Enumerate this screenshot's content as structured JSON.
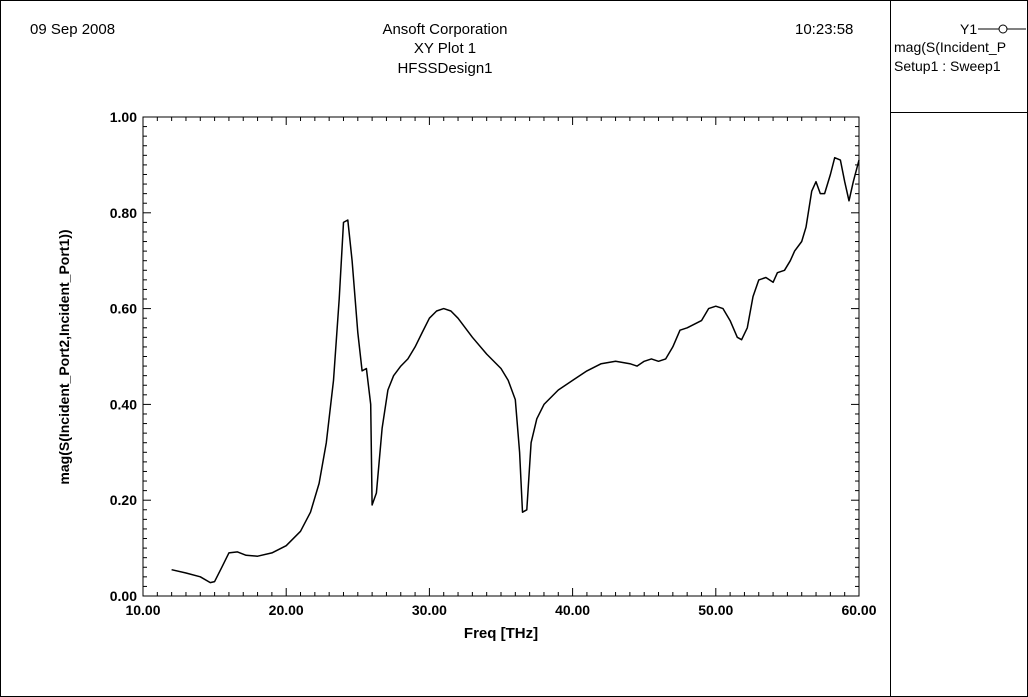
{
  "header": {
    "date": "09 Sep 2008",
    "time": "10:23:58",
    "company": "Ansoft Corporation",
    "plot_name": "XY Plot 1",
    "design": "HFSSDesign1"
  },
  "legend": {
    "label": "Y1",
    "line1": "mag(S(Incident_P",
    "line2": "Setup1 : Sweep1"
  },
  "chart_data": {
    "type": "line",
    "xlabel": "Freq [THz]",
    "ylabel": "mag(S(Incident_Port2,Incident_Port1))",
    "xlim": [
      10,
      60
    ],
    "ylim": [
      0,
      1
    ],
    "xticks": [
      "10.00",
      "20.00",
      "30.00",
      "40.00",
      "50.00",
      "60.00"
    ],
    "yticks": [
      "0.00",
      "0.20",
      "0.40",
      "0.60",
      "0.80",
      "1.00"
    ],
    "grid": false,
    "series": [
      {
        "name": "Y1",
        "color": "#000000",
        "x": [
          12.0,
          13.0,
          14.0,
          14.7,
          15.0,
          15.5,
          16.0,
          16.6,
          17.2,
          18.0,
          19.0,
          20.0,
          21.0,
          21.7,
          22.3,
          22.8,
          23.3,
          23.7,
          24.0,
          24.3,
          24.6,
          25.0,
          25.3,
          25.6,
          25.9,
          26.0,
          26.3,
          26.7,
          27.1,
          27.5,
          28.0,
          28.5,
          29.0,
          29.5,
          30.0,
          30.5,
          31.0,
          31.5,
          32.0,
          33.0,
          34.0,
          35.0,
          35.5,
          36.0,
          36.3,
          36.5,
          36.8,
          37.1,
          37.5,
          38.0,
          39.0,
          40.0,
          41.0,
          42.0,
          43.0,
          44.0,
          44.5,
          45.0,
          45.5,
          46.0,
          46.5,
          47.0,
          47.5,
          48.0,
          49.0,
          49.5,
          50.0,
          50.5,
          51.0,
          51.5,
          51.8,
          52.2,
          52.6,
          53.0,
          53.5,
          54.0,
          54.3,
          54.8,
          55.2,
          55.5,
          56.0,
          56.3,
          56.7,
          57.0,
          57.3,
          57.6,
          58.0,
          58.3,
          58.7,
          59.0,
          59.3,
          59.6,
          60.0
        ],
        "y": [
          0.055,
          0.048,
          0.04,
          0.028,
          0.03,
          0.06,
          0.09,
          0.092,
          0.085,
          0.083,
          0.09,
          0.105,
          0.135,
          0.175,
          0.235,
          0.32,
          0.45,
          0.62,
          0.78,
          0.785,
          0.7,
          0.55,
          0.47,
          0.475,
          0.4,
          0.19,
          0.215,
          0.35,
          0.43,
          0.46,
          0.48,
          0.495,
          0.52,
          0.55,
          0.58,
          0.595,
          0.6,
          0.595,
          0.58,
          0.54,
          0.505,
          0.475,
          0.45,
          0.41,
          0.3,
          0.175,
          0.18,
          0.32,
          0.37,
          0.4,
          0.43,
          0.45,
          0.47,
          0.485,
          0.49,
          0.485,
          0.48,
          0.49,
          0.495,
          0.49,
          0.495,
          0.52,
          0.555,
          0.56,
          0.575,
          0.6,
          0.605,
          0.6,
          0.575,
          0.54,
          0.535,
          0.56,
          0.625,
          0.66,
          0.665,
          0.655,
          0.675,
          0.68,
          0.7,
          0.72,
          0.74,
          0.77,
          0.845,
          0.865,
          0.84,
          0.84,
          0.88,
          0.915,
          0.91,
          0.865,
          0.825,
          0.865,
          0.91
        ]
      }
    ]
  }
}
